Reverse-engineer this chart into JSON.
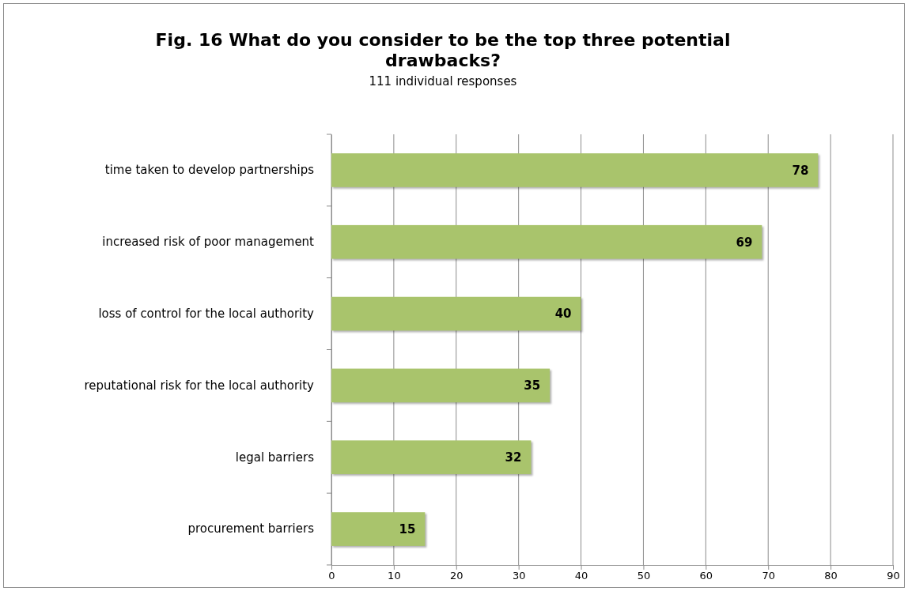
{
  "chart_data": {
    "type": "bar",
    "orientation": "horizontal",
    "title": "Fig. 16 What do you consider to be the top three potential drawbacks?",
    "subtitle": "111 individual responses",
    "categories": [
      "time taken to develop partnerships",
      "increased risk of poor management",
      "loss of control for the local authority",
      "reputational risk for the local authority",
      "legal barriers",
      "procurement barriers"
    ],
    "values": [
      78,
      69,
      40,
      35,
      32,
      15
    ],
    "color": "#a9c46c",
    "xlim": [
      0,
      90
    ],
    "xticks": [
      0,
      10,
      20,
      30,
      40,
      50,
      60,
      70,
      80,
      90
    ],
    "grid": "x",
    "data_labels": true
  }
}
